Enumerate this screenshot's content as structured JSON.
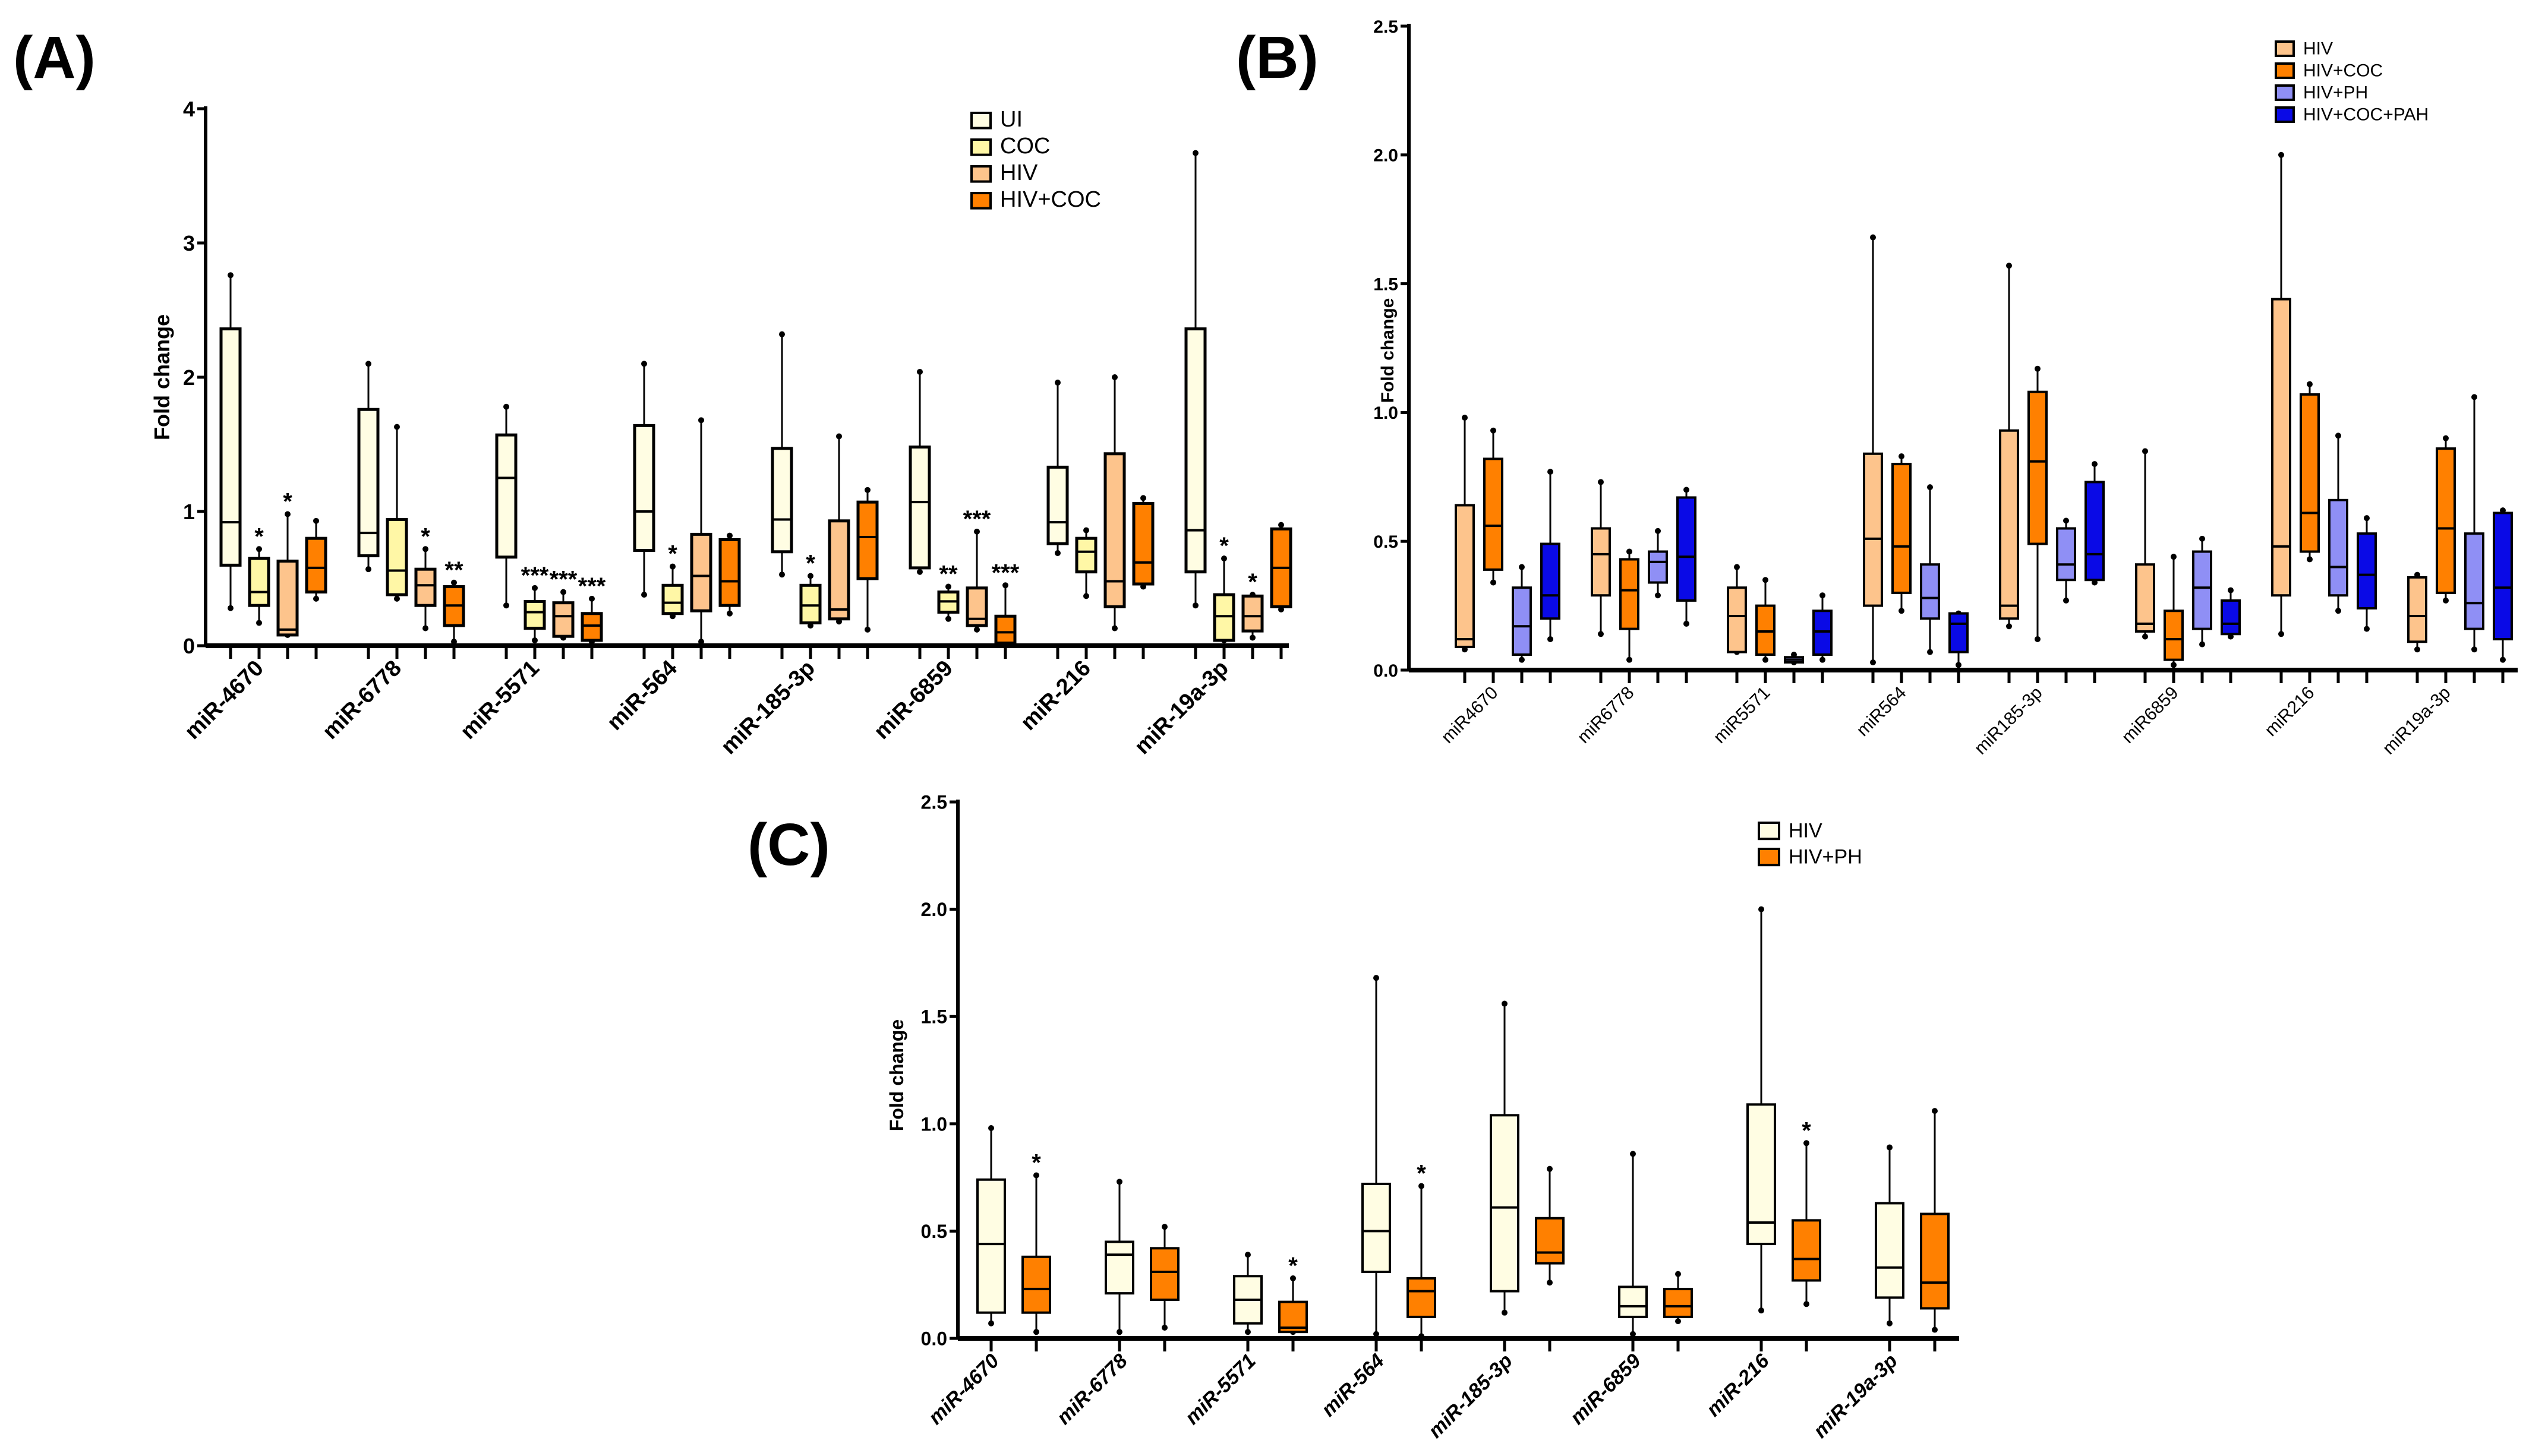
{
  "panels": {
    "a": "(A)",
    "b": "(B)",
    "c": "(C)"
  },
  "chart_data": [
    {
      "id": "A",
      "type": "box",
      "ylabel": "Fold change",
      "ylim": [
        0,
        4
      ],
      "yticks": [
        "0",
        "1",
        "2",
        "3",
        "4"
      ],
      "ytick_values": [
        0,
        1,
        2,
        3,
        4
      ],
      "legend_position": "top-right",
      "categories": [
        "miR-4670",
        "miR-6778",
        "miR-5571",
        "miR-564",
        "miR-185-3p",
        "miR-6859",
        "miR-216",
        "miR-19a-3p"
      ],
      "series": [
        {
          "name": "UI",
          "color": "#FFFDE3",
          "boxes": [
            [
              0.28,
              0.6,
              0.92,
              2.36,
              2.76
            ],
            [
              0.57,
              0.67,
              0.84,
              1.76,
              2.1
            ],
            [
              0.3,
              0.66,
              1.25,
              1.57,
              1.78
            ],
            [
              0.38,
              0.71,
              1.0,
              1.64,
              2.1
            ],
            [
              0.53,
              0.7,
              0.94,
              1.47,
              2.32
            ],
            [
              0.55,
              0.58,
              1.07,
              1.48,
              2.04
            ],
            [
              0.69,
              0.76,
              0.92,
              1.33,
              1.96
            ],
            [
              0.3,
              0.55,
              0.86,
              2.36,
              3.67
            ]
          ],
          "sig": [
            "",
            "",
            "",
            "",
            "",
            "",
            "",
            ""
          ]
        },
        {
          "name": "COC",
          "color": "#FFF7A6",
          "boxes": [
            [
              0.17,
              0.3,
              0.4,
              0.65,
              0.72
            ],
            [
              0.35,
              0.38,
              0.56,
              0.94,
              1.63
            ],
            [
              0.04,
              0.13,
              0.25,
              0.33,
              0.43
            ],
            [
              0.22,
              0.24,
              0.32,
              0.45,
              0.59
            ],
            [
              0.15,
              0.17,
              0.3,
              0.45,
              0.52
            ],
            [
              0.2,
              0.25,
              0.33,
              0.4,
              0.44
            ],
            [
              0.37,
              0.55,
              0.7,
              0.8,
              0.86
            ],
            [
              0.04,
              0.04,
              0.22,
              0.38,
              0.65
            ]
          ],
          "sig": [
            "*",
            "",
            "***",
            "*",
            "*",
            "**",
            "",
            "*"
          ]
        },
        {
          "name": "HIV",
          "color": "#FDC48C",
          "boxes": [
            [
              0.08,
              0.08,
              0.12,
              0.63,
              0.98
            ],
            [
              0.13,
              0.3,
              0.45,
              0.57,
              0.72
            ],
            [
              0.06,
              0.07,
              0.22,
              0.32,
              0.4
            ],
            [
              0.03,
              0.26,
              0.52,
              0.83,
              1.68
            ],
            [
              0.18,
              0.2,
              0.27,
              0.93,
              1.56
            ],
            [
              0.12,
              0.15,
              0.2,
              0.43,
              0.85
            ],
            [
              0.13,
              0.29,
              0.48,
              1.43,
              2.0
            ],
            [
              0.06,
              0.11,
              0.22,
              0.37,
              0.38
            ]
          ],
          "sig": [
            "*",
            "*",
            "***",
            "",
            "",
            "***",
            "",
            "*"
          ]
        },
        {
          "name": "HIV+COC",
          "color": "#FF8000",
          "boxes": [
            [
              0.35,
              0.4,
              0.58,
              0.8,
              0.93
            ],
            [
              0.03,
              0.15,
              0.3,
              0.44,
              0.47
            ],
            [
              0.03,
              0.04,
              0.15,
              0.24,
              0.35
            ],
            [
              0.24,
              0.3,
              0.48,
              0.79,
              0.82
            ],
            [
              0.12,
              0.5,
              0.81,
              1.07,
              1.16
            ],
            [
              0.02,
              0.02,
              0.1,
              0.22,
              0.45
            ],
            [
              0.44,
              0.46,
              0.62,
              1.06,
              1.1
            ],
            [
              0.27,
              0.29,
              0.58,
              0.87,
              0.9
            ]
          ],
          "sig": [
            "",
            "**",
            "***",
            "",
            "",
            "***",
            "",
            ""
          ]
        }
      ]
    },
    {
      "id": "B",
      "type": "box",
      "ylabel": "Fold change",
      "ylim": [
        0,
        2.5
      ],
      "yticks": [
        "0.0",
        "0.5",
        "1.0",
        "1.5",
        "2.0",
        "2.5"
      ],
      "ytick_values": [
        0,
        0.5,
        1.0,
        1.5,
        2.0,
        2.5
      ],
      "legend_position": "top-right",
      "categories": [
        "miR4670",
        "miR6778",
        "miR5571",
        "miR564",
        "miR185-3p",
        "miR6859",
        "miR216",
        "miR19a-3p"
      ],
      "series": [
        {
          "name": "HIV",
          "color": "#FDC48C",
          "boxes": [
            [
              0.08,
              0.09,
              0.12,
              0.64,
              0.98
            ],
            [
              0.14,
              0.29,
              0.45,
              0.55,
              0.73
            ],
            [
              0.07,
              0.07,
              0.21,
              0.32,
              0.4
            ],
            [
              0.03,
              0.25,
              0.51,
              0.84,
              1.68
            ],
            [
              0.17,
              0.2,
              0.25,
              0.93,
              1.57
            ],
            [
              0.13,
              0.15,
              0.18,
              0.41,
              0.85
            ],
            [
              0.14,
              0.29,
              0.48,
              1.44,
              2.0
            ],
            [
              0.08,
              0.11,
              0.21,
              0.36,
              0.37
            ]
          ],
          "sig": [
            "",
            "",
            "",
            "",
            "",
            "",
            "",
            ""
          ]
        },
        {
          "name": "HIV+COC",
          "color": "#FF8000",
          "boxes": [
            [
              0.34,
              0.39,
              0.56,
              0.82,
              0.93
            ],
            [
              0.04,
              0.16,
              0.31,
              0.43,
              0.46
            ],
            [
              0.04,
              0.06,
              0.15,
              0.25,
              0.35
            ],
            [
              0.23,
              0.3,
              0.48,
              0.8,
              0.83
            ],
            [
              0.12,
              0.49,
              0.81,
              1.08,
              1.17
            ],
            [
              0.02,
              0.04,
              0.12,
              0.23,
              0.44
            ],
            [
              0.43,
              0.46,
              0.61,
              1.07,
              1.11
            ],
            [
              0.27,
              0.3,
              0.55,
              0.86,
              0.9
            ]
          ],
          "sig": [
            "",
            "",
            "",
            "",
            "",
            "",
            "",
            ""
          ]
        },
        {
          "name": "HIV+PH",
          "color": "#8F8FF5",
          "boxes": [
            [
              0.04,
              0.06,
              0.17,
              0.32,
              0.4
            ],
            [
              0.29,
              0.34,
              0.42,
              0.46,
              0.54
            ],
            [
              0.03,
              0.03,
              0.04,
              0.05,
              0.06
            ],
            [
              0.07,
              0.2,
              0.28,
              0.41,
              0.71
            ],
            [
              0.27,
              0.35,
              0.41,
              0.55,
              0.58
            ],
            [
              0.1,
              0.16,
              0.32,
              0.46,
              0.51
            ],
            [
              0.23,
              0.29,
              0.4,
              0.66,
              0.91
            ],
            [
              0.08,
              0.16,
              0.26,
              0.53,
              1.06
            ]
          ],
          "sig": [
            "",
            "",
            "",
            "",
            "",
            "",
            "",
            ""
          ]
        },
        {
          "name": "HIV+COC+PAH",
          "color": "#0A0AE6",
          "boxes": [
            [
              0.12,
              0.2,
              0.29,
              0.49,
              0.77
            ],
            [
              0.18,
              0.27,
              0.44,
              0.67,
              0.7
            ],
            [
              0.04,
              0.06,
              0.15,
              0.23,
              0.29
            ],
            [
              0.02,
              0.07,
              0.18,
              0.22,
              0.22
            ],
            [
              0.34,
              0.35,
              0.45,
              0.73,
              0.8
            ],
            [
              0.13,
              0.14,
              0.18,
              0.27,
              0.31
            ],
            [
              0.16,
              0.24,
              0.37,
              0.53,
              0.59
            ],
            [
              0.04,
              0.12,
              0.32,
              0.61,
              0.62
            ]
          ],
          "sig": [
            "",
            "",
            "",
            "",
            "",
            "",
            "",
            ""
          ]
        }
      ]
    },
    {
      "id": "C",
      "type": "box",
      "ylabel": "Fold change",
      "ylim": [
        0,
        2.5
      ],
      "yticks": [
        "0.0",
        "0.5",
        "1.0",
        "1.5",
        "2.0",
        "2.5"
      ],
      "ytick_values": [
        0,
        0.5,
        1.0,
        1.5,
        2.0,
        2.5
      ],
      "legend_position": "top-right",
      "categories": [
        "miR-4670",
        "miR-6778",
        "miR-5571",
        "miR-564",
        "miR-185-3p",
        "miR-6859",
        "miR-216",
        "miR-19a-3p"
      ],
      "series": [
        {
          "name": "HIV",
          "color": "#FFFDE3",
          "boxes": [
            [
              0.07,
              0.12,
              0.44,
              0.74,
              0.98
            ],
            [
              0.03,
              0.21,
              0.39,
              0.45,
              0.73
            ],
            [
              0.03,
              0.07,
              0.18,
              0.29,
              0.39
            ],
            [
              0.02,
              0.31,
              0.5,
              0.72,
              1.68
            ],
            [
              0.12,
              0.22,
              0.61,
              1.04,
              1.56
            ],
            [
              0.02,
              0.1,
              0.15,
              0.24,
              0.86
            ],
            [
              0.13,
              0.44,
              0.54,
              1.09,
              2.0
            ],
            [
              0.07,
              0.19,
              0.33,
              0.63,
              0.89
            ]
          ],
          "sig": [
            "",
            "",
            "",
            "",
            "",
            "",
            "",
            ""
          ]
        },
        {
          "name": "HIV+PH",
          "color": "#FF8000",
          "boxes": [
            [
              0.03,
              0.12,
              0.23,
              0.38,
              0.76
            ],
            [
              0.05,
              0.18,
              0.31,
              0.42,
              0.52
            ],
            [
              0.03,
              0.03,
              0.05,
              0.17,
              0.28
            ],
            [
              0.01,
              0.1,
              0.22,
              0.28,
              0.71
            ],
            [
              0.26,
              0.35,
              0.4,
              0.56,
              0.79
            ],
            [
              0.08,
              0.1,
              0.15,
              0.23,
              0.3
            ],
            [
              0.16,
              0.27,
              0.37,
              0.55,
              0.91
            ],
            [
              0.04,
              0.14,
              0.26,
              0.58,
              1.06
            ]
          ],
          "sig": [
            "*",
            "",
            "*",
            "*",
            "",
            "",
            "*",
            ""
          ]
        }
      ]
    }
  ]
}
